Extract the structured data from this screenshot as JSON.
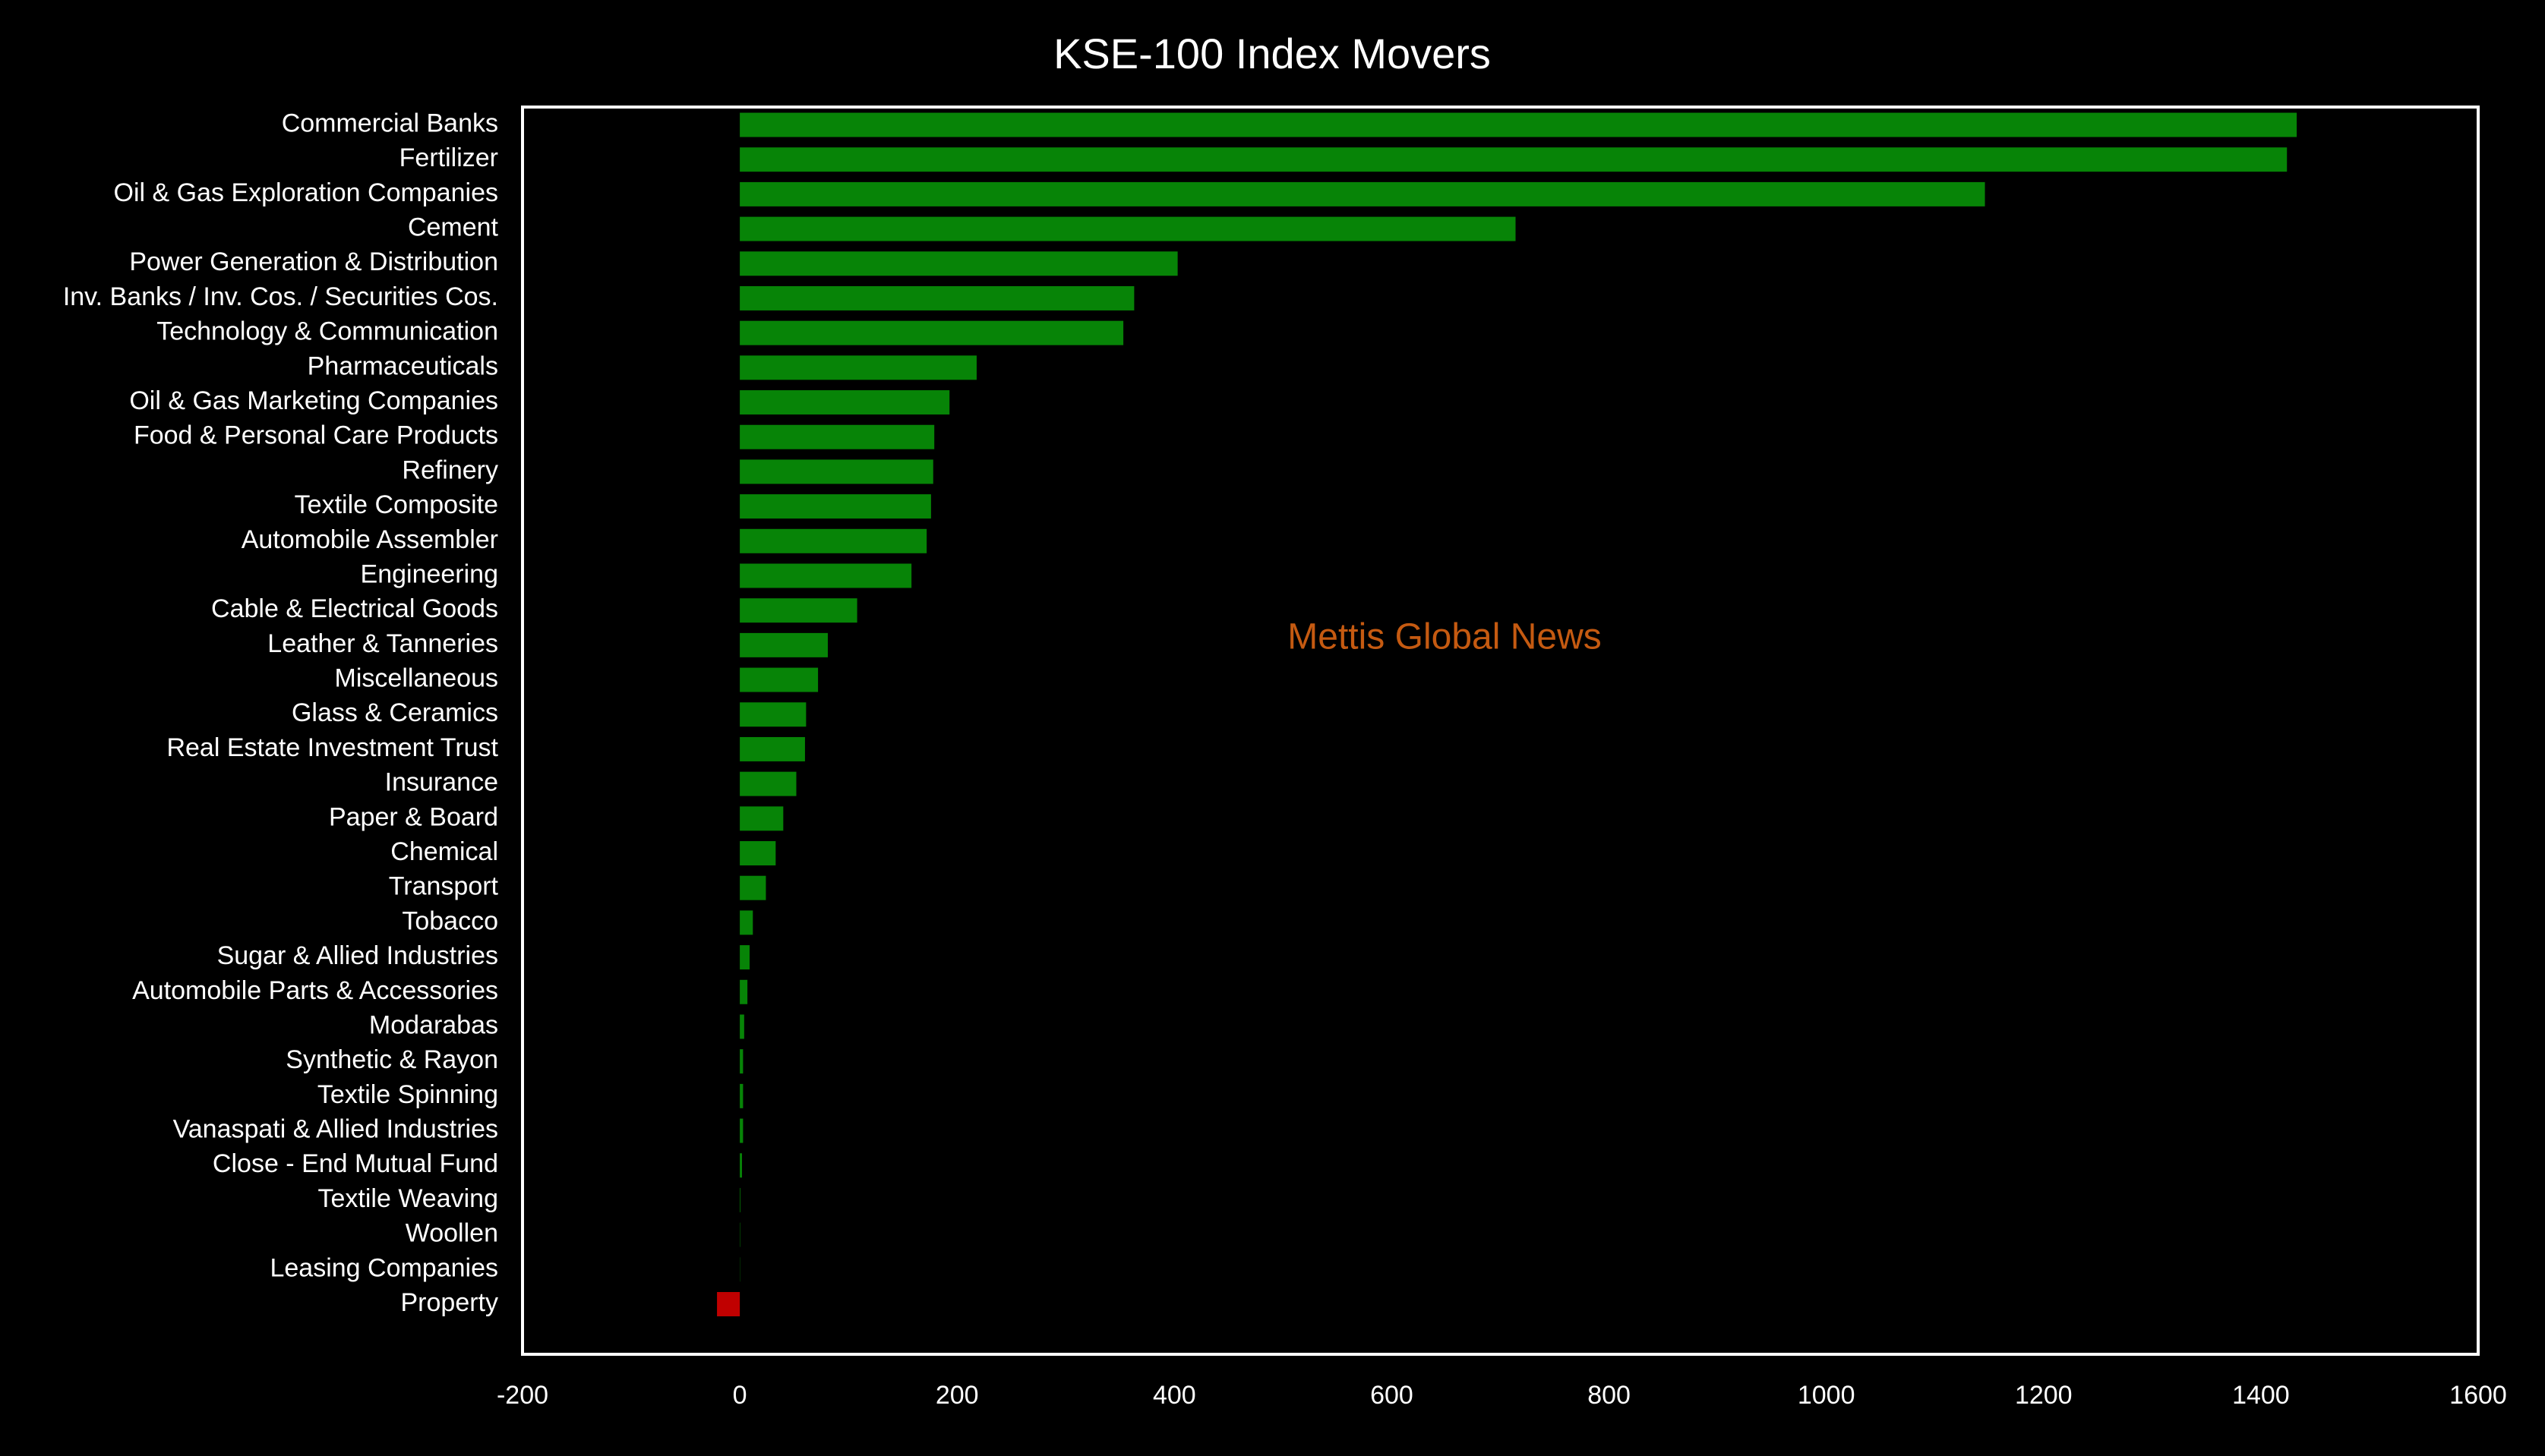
{
  "chart_data": {
    "type": "bar",
    "orientation": "horizontal",
    "title": "KSE-100 Index Movers",
    "annotation": "Mettis Global News",
    "annotation_color": "#c55a11",
    "categories": [
      "Commercial Banks",
      "Fertilizer",
      "Oil & Gas Exploration Companies",
      "Cement",
      "Power Generation & Distribution",
      "Inv. Banks / Inv. Cos. / Securities Cos.",
      "Technology & Communication",
      "Pharmaceuticals",
      "Oil & Gas Marketing Companies",
      "Food & Personal Care Products",
      "Refinery",
      "Textile Composite",
      "Automobile Assembler",
      "Engineering",
      "Cable & Electrical Goods",
      "Leather & Tanneries",
      "Miscellaneous",
      "Glass & Ceramics",
      "Real Estate Investment Trust",
      "Insurance",
      "Paper & Board",
      "Chemical",
      "Transport",
      "Tobacco",
      "Sugar & Allied Industries",
      "Automobile Parts & Accessories",
      "Modarabas",
      "Synthetic & Rayon",
      "Textile Spinning",
      "Vanaspati & Allied Industries",
      "Close - End Mutual Fund",
      "Textile Weaving",
      "Woollen",
      "Leasing Companies",
      "Property"
    ],
    "values": [
      1433,
      1424,
      1146,
      714,
      403,
      363,
      353,
      218,
      193,
      179,
      178,
      176,
      172,
      158,
      108,
      81,
      72,
      61,
      60,
      52,
      40,
      33,
      24,
      12,
      9,
      7,
      4,
      3,
      3,
      3,
      2,
      0.5,
      0.3,
      0.2,
      -21
    ],
    "color": "#078407",
    "negative_color": "#c00000",
    "xlim": [
      -200,
      1600
    ],
    "xticks": [
      -200,
      0,
      200,
      400,
      600,
      800,
      1000,
      1200,
      1400,
      1600
    ]
  }
}
